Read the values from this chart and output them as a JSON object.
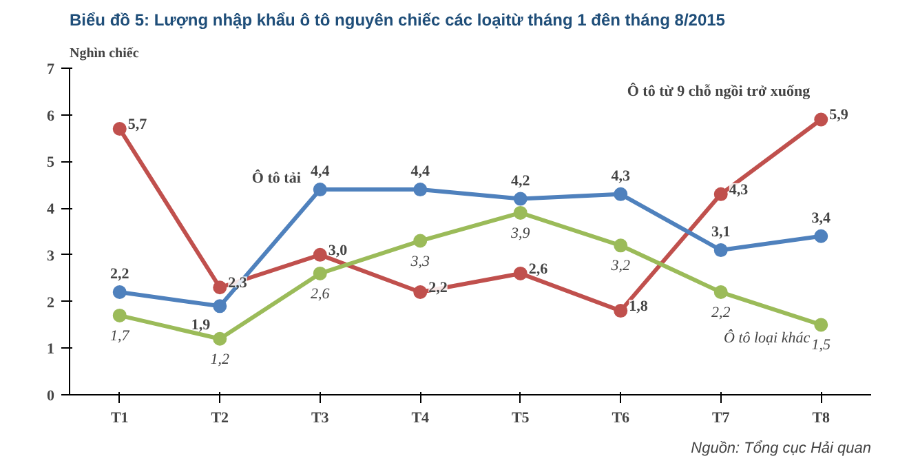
{
  "chart_data": {
    "type": "line",
    "title": "Biểu đồ 5: Lượng nhập khẩu ô tô nguyên chiếc các loạitừ tháng 1 đên tháng 8/2015",
    "ylabel": "Nghìn chiếc",
    "categories": [
      "T1",
      "T2",
      "T3",
      "T4",
      "T5",
      "T6",
      "T7",
      "T8"
    ],
    "ylim": [
      0,
      7
    ],
    "yticks": [
      0,
      1,
      2,
      3,
      4,
      5,
      6,
      7
    ],
    "marker": "circle",
    "grid": false,
    "series": [
      {
        "name": "Ô tô từ 9 chỗ ngồi trở xuống",
        "color": "#c0504d",
        "values": [
          5.7,
          2.3,
          3.0,
          2.2,
          2.6,
          1.8,
          4.3,
          5.9
        ],
        "value_labels": [
          "5,7",
          "2,3",
          "3,0",
          "2,2",
          "2,6",
          "1,8",
          "4,3",
          "5,9"
        ]
      },
      {
        "name": "Ô tô tải",
        "color": "#4f81bd",
        "values": [
          2.2,
          1.9,
          4.4,
          4.4,
          4.2,
          4.3,
          3.1,
          3.4
        ],
        "value_labels": [
          "2,2",
          "1,9",
          "4,4",
          "4,4",
          "4,2",
          "4,3",
          "3,1",
          "3,4"
        ]
      },
      {
        "name": "Ô tô loại khác",
        "color": "#9bbb59",
        "values": [
          1.7,
          1.2,
          2.6,
          3.3,
          3.9,
          3.2,
          2.2,
          1.5
        ],
        "value_labels": [
          "1,7",
          "1,2",
          "2,6",
          "3,3",
          "3,9",
          "3,2",
          "2,2",
          "1,5"
        ]
      }
    ],
    "annotations": [
      "Nguồn: Tổng cục Hải quan"
    ]
  }
}
